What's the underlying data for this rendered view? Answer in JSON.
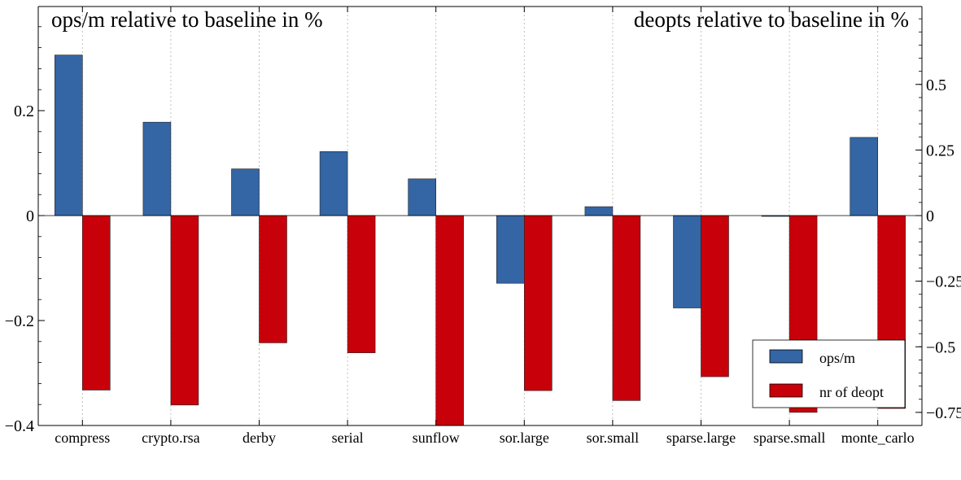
{
  "chart_data": {
    "type": "bar",
    "left_title": "ops/m relative to baseline in %",
    "right_title": "deopts relative to baseline in %",
    "categories": [
      "compress",
      "crypto.rsa",
      "derby",
      "serial",
      "sunflow",
      "sor.large",
      "sor.small",
      "sparse.large",
      "sparse.small",
      "monte_carlo"
    ],
    "series": [
      {
        "name": "ops/m",
        "axis": "left",
        "color": "#3465a4",
        "values": [
          0.306,
          0.178,
          0.089,
          0.122,
          0.07,
          -0.129,
          0.017,
          -0.176,
          -0.001,
          0.149
        ]
      },
      {
        "name": "nr of deopt",
        "axis": "right",
        "color": "#c8000a",
        "values": [
          -0.665,
          -0.722,
          -0.485,
          -0.523,
          -0.81,
          -0.667,
          -0.705,
          -0.614,
          -0.75,
          -0.735
        ]
      }
    ],
    "left_axis": {
      "ylim": [
        -0.4,
        0.4
      ],
      "ticks": [
        -0.4,
        -0.2,
        0,
        0.2
      ],
      "tick_labels": [
        "−0.4",
        "−0.2",
        "0",
        "0.2"
      ]
    },
    "right_axis": {
      "ylim": [
        -0.8,
        0.8
      ],
      "ticks": [
        -0.75,
        -0.5,
        -0.25,
        0,
        0.25,
        0.5
      ],
      "tick_labels": [
        "−0.75",
        "−0.5",
        "−0.25",
        "0",
        "0.25",
        "0.5"
      ]
    },
    "grid": "vertical dotted",
    "legend_position": "lower-right"
  }
}
